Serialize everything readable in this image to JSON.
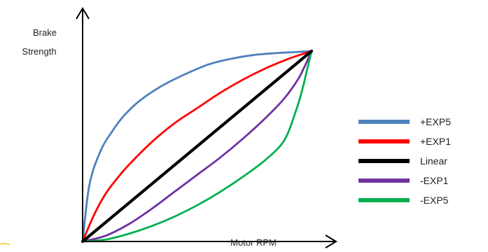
{
  "chart_data": {
    "type": "line",
    "title": "",
    "xlabel": "Motor RPM",
    "ylabel": [
      "Brake",
      "Strength"
    ],
    "xlim": [
      0,
      1
    ],
    "ylim": [
      0,
      1
    ],
    "grid": false,
    "legend_position": "right",
    "series": [
      {
        "name": "+EXP5",
        "color": "#4f81bd",
        "x": [
          0,
          0.03,
          0.08,
          0.13,
          0.18,
          0.25,
          0.35,
          0.45,
          0.55,
          0.65,
          0.75,
          0.85,
          0.93,
          1
        ],
        "y": [
          0,
          0.3,
          0.48,
          0.58,
          0.66,
          0.74,
          0.82,
          0.88,
          0.93,
          0.96,
          0.98,
          0.99,
          0.995,
          1
        ]
      },
      {
        "name": "+EXP1",
        "color": "#ff0000",
        "x": [
          0,
          0.05,
          0.1,
          0.15,
          0.2,
          0.3,
          0.4,
          0.5,
          0.6,
          0.7,
          0.8,
          0.9,
          1
        ],
        "y": [
          0,
          0.14,
          0.25,
          0.33,
          0.4,
          0.52,
          0.62,
          0.7,
          0.78,
          0.85,
          0.91,
          0.96,
          1
        ]
      },
      {
        "name": "Linear",
        "color": "#000000",
        "x": [
          0,
          1
        ],
        "y": [
          0,
          1
        ]
      },
      {
        "name": "-EXP1",
        "color": "#7030a0",
        "x": [
          0,
          0.1,
          0.2,
          0.3,
          0.4,
          0.5,
          0.6,
          0.7,
          0.8,
          0.88,
          0.94,
          0.97,
          1
        ],
        "y": [
          0,
          0.03,
          0.09,
          0.17,
          0.26,
          0.35,
          0.44,
          0.54,
          0.65,
          0.75,
          0.85,
          0.92,
          1
        ]
      },
      {
        "name": "-EXP5",
        "color": "#00b050",
        "x": [
          0,
          0.1,
          0.2,
          0.3,
          0.4,
          0.5,
          0.6,
          0.7,
          0.8,
          0.88,
          0.93,
          0.96,
          0.98,
          1
        ],
        "y": [
          0,
          0.01,
          0.04,
          0.08,
          0.13,
          0.19,
          0.26,
          0.34,
          0.43,
          0.53,
          0.68,
          0.8,
          0.9,
          1
        ]
      }
    ]
  }
}
